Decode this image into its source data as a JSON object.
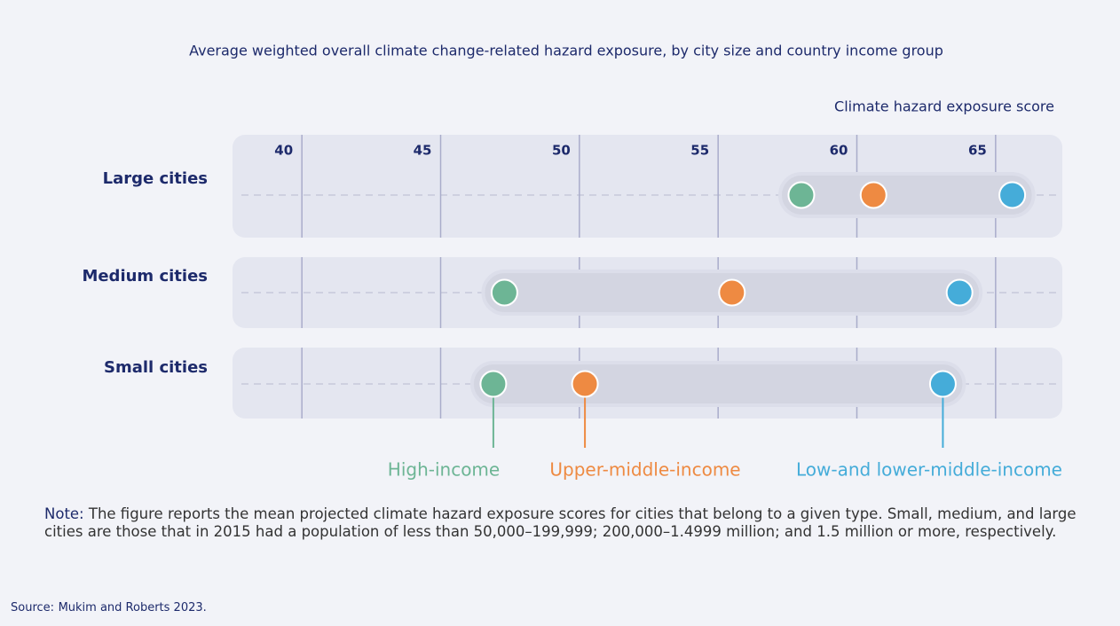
{
  "chart_data": {
    "type": "dot",
    "title": "Average weighted overall climate change-related hazard exposure, by city size and country income group",
    "x_label": "Climate hazard exposure score",
    "categories": [
      "Large cities",
      "Medium cities",
      "Small cities"
    ],
    "series": [
      {
        "name": "High-income",
        "color": "#6db595",
        "values": [
          58.0,
          47.3,
          46.9
        ]
      },
      {
        "name": "Upper-middle-income",
        "color": "#ee8a42",
        "values": [
          60.6,
          55.5,
          50.2
        ]
      },
      {
        "name": "Low-and lower-middle-income",
        "color": "#45acd9",
        "values": [
          65.6,
          63.7,
          63.1
        ]
      }
    ],
    "xlim": [
      37.5,
      67.5
    ],
    "xticks": [
      40,
      45,
      50,
      55,
      60,
      65
    ],
    "grid": true
  },
  "note": {
    "label": "Note:",
    "text": "The figure reports the mean projected climate hazard exposure scores for cities that belong to a given type. Small, medium, and large cities are those that in 2015 had a population of less than 50,000–199,999; 200,000–1.4999 million; and 1.5 million or more, respectively."
  },
  "source": {
    "label": "Source:",
    "text": "Mukim and Roberts 2023."
  }
}
